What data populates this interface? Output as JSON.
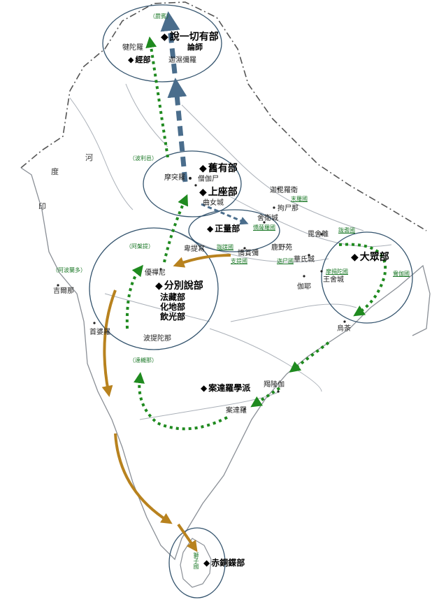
{
  "colors": {
    "blue_arrow": "#4a6d8c",
    "green_arrow": "#1f8a1f",
    "brown_arrow": "#b8821e",
    "circle": "#34546e",
    "coast": "#8a8f96",
    "river": "#aab0b8"
  },
  "regions": {
    "jibin": "（罽賓）",
    "polili": "（波利邑）",
    "apanti": "（阿槃提）",
    "apolanduo": "（阿波蘭多）",
    "dachen": "（達櫬那）",
    "shizi": "獅子國",
    "mola": "末羅國",
    "jusaluo": "憍薩羅國",
    "poshe": "跋耆國",
    "mojietuo": "摩揭陀國",
    "shuqie": "鴦伽國",
    "batuo": "跋蹉國",
    "zhiti": "支提國",
    "jiashi": "迦尸國"
  },
  "sects": {
    "sarvastivada": "說一切有部",
    "sarvastivada_sub": "論師",
    "jingbu": "經部",
    "jiuyou": "舊有部",
    "shangzuo": "上座部",
    "zhengliang": "正量部",
    "dazhong": "大眾部",
    "fenbie": "分別說部",
    "fenbie_sub1": "法藏部",
    "fenbie_sub2": "化地部",
    "fenbie_sub3": "飲光部",
    "andaluo": "案達羅學派",
    "chitong": "赤銅鍱部"
  },
  "cities": {
    "jiantuoluo": "犍陀羅",
    "jiashimiluo": "迦濕彌羅",
    "motuluo": "摩突羅",
    "sengqiashi": "僧伽尸",
    "qunucheng": "曲女城",
    "jiapiluowei": "迦毘羅衛",
    "shewei": "舍衛城",
    "jushinuo": "拘尸那",
    "beitisi": "卑提寫",
    "jiaoshanmi": "憍賞彌",
    "luyeyuan": "鹿野苑",
    "kunshe": "毘舍離",
    "huashi": "華氏城",
    "wangshe": "王舍城",
    "jiaye": "伽耶",
    "youchanni": "優禪尼",
    "jilanuo": "吉爾那",
    "yinpoluo": "首婆羅",
    "potituona": "波提陀那",
    "wucha": "烏荼",
    "jielingqie": "羯陵伽",
    "andaluo_city": "案達羅"
  },
  "rivers": {
    "river_char": "河",
    "du_char": "度",
    "yin_char": "印"
  }
}
